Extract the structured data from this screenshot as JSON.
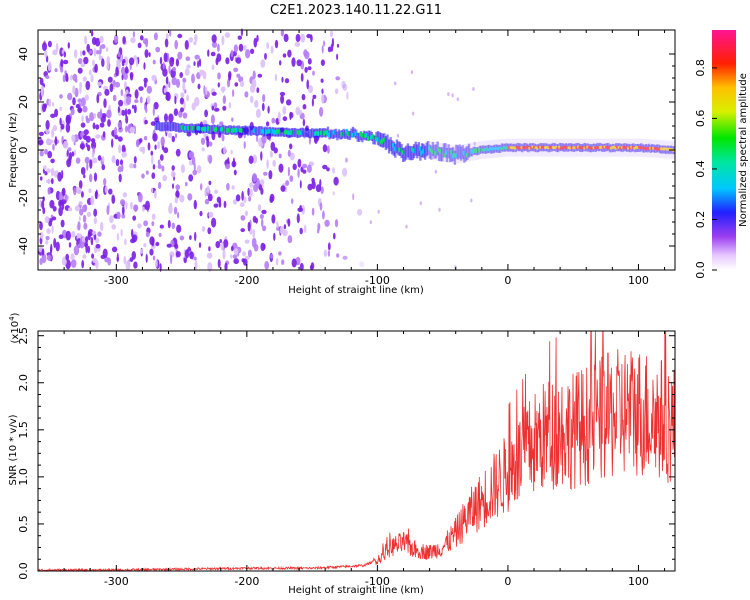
{
  "title": "C2E1.2023.140.11.22.G11",
  "colors": {
    "snr_line": "#ee3030",
    "axis": "#000000"
  },
  "chart_data": [
    {
      "type": "heatmap",
      "name": "spectrogram",
      "xlabel": "Height of straight line (km)",
      "ylabel": "Frequency (Hz)",
      "xlim": [
        -360,
        128
      ],
      "ylim": [
        -50,
        50
      ],
      "xticks": [
        -300,
        -200,
        -100,
        0,
        100
      ],
      "xtick_labels": [
        "-300",
        "-200",
        "-100",
        "0",
        "100"
      ],
      "yticks": [
        -40,
        -20,
        0,
        20,
        40
      ],
      "ytick_labels": [
        "-40",
        "-20",
        "0",
        "20",
        "40"
      ],
      "colorbar": {
        "label": "Normalized spectral amplitude",
        "range": [
          0,
          0.95
        ],
        "ticks": [
          0.0,
          0.2,
          0.4,
          0.6,
          0.8
        ],
        "tick_labels": [
          "0.0",
          "0.2",
          "0.4",
          "0.6",
          "0.8"
        ]
      },
      "ridge": {
        "heights_km": [
          -270,
          -240,
          -200,
          -150,
          -120,
          -100,
          -80,
          -60,
          -40,
          -20,
          0,
          50,
          100,
          128
        ],
        "frequency_hz": [
          10,
          9,
          8,
          7,
          7,
          5,
          -1,
          0,
          -2,
          0,
          1,
          1,
          1,
          0
        ]
      },
      "noise_extent_km": [
        -360,
        -130
      ]
    },
    {
      "type": "line",
      "name": "snr",
      "xlabel": "Height of straight line (km)",
      "ylabel": "SNR (10 * v/v)",
      "scale_note_prefix": "(x10",
      "scale_note_exp": "4",
      "scale_note_suffix": ")",
      "xlim": [
        -360,
        128
      ],
      "ylim": [
        0,
        2.55
      ],
      "xticks": [
        -300,
        -200,
        -100,
        0,
        100
      ],
      "xtick_labels": [
        "-300",
        "-200",
        "-100",
        "0",
        "100"
      ],
      "yticks": [
        0.0,
        0.5,
        1.0,
        1.5,
        2.0,
        2.5
      ],
      "ytick_labels": [
        "0.0",
        "0.5",
        "1.0",
        "1.5",
        "2.0",
        "2.5"
      ],
      "series": [
        {
          "name": "SNR",
          "x": [
            -360,
            -300,
            -250,
            -200,
            -150,
            -120,
            -110,
            -100,
            -90,
            -80,
            -70,
            -60,
            -50,
            -40,
            -30,
            -20,
            -10,
            0,
            10,
            20,
            30,
            40,
            50,
            60,
            70,
            80,
            90,
            100,
            110,
            120,
            128
          ],
          "y": [
            0.01,
            0.01,
            0.02,
            0.03,
            0.03,
            0.05,
            0.06,
            0.12,
            0.25,
            0.3,
            0.22,
            0.2,
            0.25,
            0.4,
            0.6,
            0.75,
            0.9,
            1.05,
            1.2,
            1.35,
            1.45,
            1.5,
            1.5,
            1.55,
            1.6,
            1.65,
            1.7,
            1.7,
            1.65,
            1.6,
            1.55
          ]
        }
      ]
    }
  ]
}
